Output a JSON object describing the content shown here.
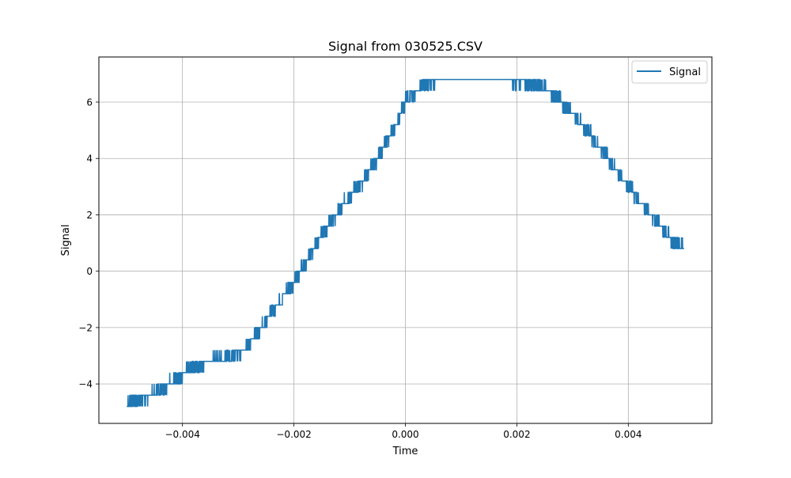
{
  "chart_data": {
    "type": "line",
    "title": "Signal from 030525.CSV",
    "xlabel": "Time",
    "ylabel": "Signal",
    "xlim": [
      -0.0055,
      0.0055
    ],
    "ylim": [
      -5.4,
      7.6
    ],
    "x_ticks": [
      -0.004,
      -0.002,
      0.0,
      0.002,
      0.004
    ],
    "x_tick_labels": [
      "−0.004",
      "−0.002",
      "0.000",
      "0.002",
      "0.004"
    ],
    "y_ticks": [
      -4,
      -2,
      0,
      2,
      4,
      6
    ],
    "y_tick_labels": [
      "−4",
      "−2",
      "0",
      "2",
      "4",
      "6"
    ],
    "grid": true,
    "legend_position": "top-right",
    "series": [
      {
        "name": "Signal",
        "color": "#1f77b4",
        "quantization_step": 0.4,
        "noise_band": 0.4,
        "x": [
          -0.005,
          -0.0047,
          -0.0044,
          -0.0041,
          -0.0038,
          -0.0035,
          -0.0032,
          -0.0029,
          -0.0026,
          -0.0023,
          -0.002,
          -0.0017,
          -0.0014,
          -0.0011,
          -0.0008,
          -0.0005,
          -0.0002,
          0.0,
          0.0003,
          0.0006,
          0.0009,
          0.0012,
          0.0015,
          0.0018,
          0.0021,
          0.0024,
          0.0027,
          0.003,
          0.0033,
          0.0036,
          0.0039,
          0.0042,
          0.0045,
          0.0048,
          0.005
        ],
        "y": [
          -4.7,
          -4.5,
          -4.2,
          -3.8,
          -3.4,
          -3.2,
          -3.1,
          -2.8,
          -2.0,
          -1.2,
          -0.4,
          0.6,
          1.6,
          2.4,
          3.1,
          4.0,
          5.1,
          6.0,
          6.6,
          6.8,
          6.8,
          6.8,
          6.8,
          6.8,
          6.7,
          6.6,
          6.2,
          5.6,
          4.9,
          4.1,
          3.3,
          2.5,
          1.8,
          1.1,
          0.8
        ]
      }
    ]
  }
}
